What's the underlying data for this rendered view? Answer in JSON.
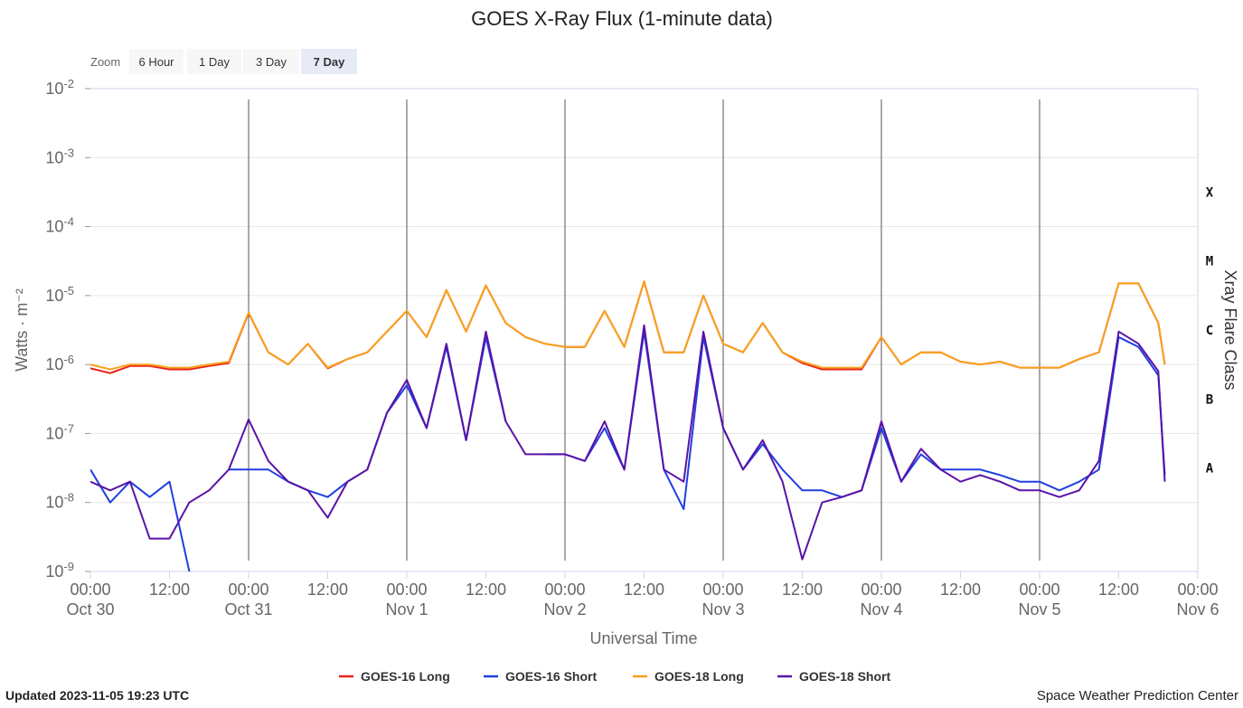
{
  "chart_data": {
    "type": "line",
    "title": "GOES X-Ray Flux (1-minute data)",
    "zoom": {
      "label": "Zoom",
      "buttons": [
        "6 Hour",
        "1 Day",
        "3 Day",
        "7 Day"
      ],
      "selected": 3
    },
    "x_label": "Universal Time",
    "y_label": "Watts · m⁻²",
    "y2_label": "Xray Flare Class",
    "log_y": true,
    "grid": true,
    "ylim": [
      1e-09,
      0.01
    ],
    "yticks": [
      {
        "value": 0.01,
        "label": [
          "10",
          "-2"
        ]
      },
      {
        "value": 0.001,
        "label": [
          "10",
          "-3"
        ]
      },
      {
        "value": 0.0001,
        "label": [
          "10",
          "-4"
        ]
      },
      {
        "value": 1e-05,
        "label": [
          "10",
          "-5"
        ]
      },
      {
        "value": 1e-06,
        "label": [
          "10",
          "-6"
        ]
      },
      {
        "value": 1e-07,
        "label": [
          "10",
          "-7"
        ]
      },
      {
        "value": 1e-08,
        "label": [
          "10",
          "-8"
        ]
      },
      {
        "value": 1e-09,
        "label": [
          "10",
          "-9"
        ]
      }
    ],
    "flare_classes": [
      {
        "value": 0.0001,
        "label": "X"
      },
      {
        "value": 1e-05,
        "label": "M"
      },
      {
        "value": 1e-06,
        "label": "C"
      },
      {
        "value": 1e-07,
        "label": "B"
      },
      {
        "value": 1e-08,
        "label": "A"
      }
    ],
    "xlim": [
      "Oct 30 00:00",
      "Nov 6 00:00"
    ],
    "xticks": [
      {
        "value": "Oct 30 00:00",
        "label": [
          "00:00",
          "Oct 30"
        ]
      },
      {
        "value": "Oct 30 12:00",
        "label": [
          "12:00"
        ]
      },
      {
        "value": "Oct 31 00:00",
        "label": [
          "00:00",
          "Oct 31"
        ]
      },
      {
        "value": "Oct 31 12:00",
        "label": [
          "12:00"
        ]
      },
      {
        "value": "Nov 1 00:00",
        "label": [
          "00:00",
          "Nov 1"
        ]
      },
      {
        "value": "Nov 1 12:00",
        "label": [
          "12:00"
        ]
      },
      {
        "value": "Nov 2 00:00",
        "label": [
          "00:00",
          "Nov 2"
        ]
      },
      {
        "value": "Nov 2 12:00",
        "label": [
          "12:00"
        ]
      },
      {
        "value": "Nov 3 00:00",
        "label": [
          "00:00",
          "Nov 3"
        ]
      },
      {
        "value": "Nov 3 12:00",
        "label": [
          "12:00"
        ]
      },
      {
        "value": "Nov 4 00:00",
        "label": [
          "00:00",
          "Nov 4"
        ]
      },
      {
        "value": "Nov 4 12:00",
        "label": [
          "12:00"
        ]
      },
      {
        "value": "Nov 5 00:00",
        "label": [
          "00:00",
          "Nov 5"
        ]
      },
      {
        "value": "Nov 5 12:00",
        "label": [
          "12:00"
        ]
      },
      {
        "value": "Nov 6 00:00",
        "label": [
          "00:00",
          "Nov 6"
        ]
      }
    ],
    "x": [
      "Oct 30 00:00",
      "Oct 30 03:00",
      "Oct 30 06:00",
      "Oct 30 09:00",
      "Oct 30 12:00",
      "Oct 30 15:00",
      "Oct 30 18:00",
      "Oct 30 21:00",
      "Oct 31 00:00",
      "Oct 31 03:00",
      "Oct 31 06:00",
      "Oct 31 09:00",
      "Oct 31 12:00",
      "Oct 31 15:00",
      "Oct 31 18:00",
      "Oct 31 21:00",
      "Nov 1 00:00",
      "Nov 1 03:00",
      "Nov 1 06:00",
      "Nov 1 09:00",
      "Nov 1 12:00",
      "Nov 1 15:00",
      "Nov 1 18:00",
      "Nov 1 21:00",
      "Nov 2 00:00",
      "Nov 2 03:00",
      "Nov 2 06:00",
      "Nov 2 09:00",
      "Nov 2 12:00",
      "Nov 2 15:00",
      "Nov 2 18:00",
      "Nov 2 21:00",
      "Nov 3 00:00",
      "Nov 3 03:00",
      "Nov 3 06:00",
      "Nov 3 09:00",
      "Nov 3 12:00",
      "Nov 3 15:00",
      "Nov 3 18:00",
      "Nov 3 21:00",
      "Nov 4 00:00",
      "Nov 4 03:00",
      "Nov 4 06:00",
      "Nov 4 09:00",
      "Nov 4 12:00",
      "Nov 4 15:00",
      "Nov 4 18:00",
      "Nov 4 21:00",
      "Nov 5 00:00",
      "Nov 5 03:00",
      "Nov 5 06:00",
      "Nov 5 09:00",
      "Nov 5 12:00",
      "Nov 5 15:00",
      "Nov 5 18:00",
      "Nov 5 19:00"
    ],
    "series": [
      {
        "name": "GOES-16 Long",
        "color": "#e8221b",
        "values": [
          8.8e-07,
          7.5e-07,
          9.5e-07,
          9.5e-07,
          8.5e-07,
          8.5e-07,
          9.5e-07,
          1.05e-06,
          5.6e-06,
          1.5e-06,
          1e-06,
          2e-06,
          8.8e-07,
          1.2e-06,
          1.5e-06,
          3e-06,
          6e-06,
          2.5e-06,
          1.2e-05,
          3e-06,
          1.4e-05,
          4e-06,
          2.5e-06,
          2e-06,
          1.8e-06,
          1.8e-06,
          6e-06,
          1.8e-06,
          1.6e-05,
          1.5e-06,
          1.5e-06,
          1e-05,
          2e-06,
          1.5e-06,
          4e-06,
          1.5e-06,
          1.05e-06,
          8.5e-07,
          8.5e-07,
          8.5e-07,
          2.5e-06,
          1e-06,
          1.5e-06,
          1.5e-06,
          1.1e-06,
          1e-06,
          1.1e-06,
          9e-07,
          9e-07,
          9e-07,
          1.2e-06,
          1.5e-06,
          1.5e-05,
          1.5e-05,
          4e-06,
          1e-06
        ]
      },
      {
        "name": "GOES-16 Short",
        "color": "#1f3fe0",
        "values": [
          3e-08,
          1e-08,
          2e-08,
          1.2e-08,
          2e-08,
          1e-09,
          null,
          3e-08,
          3e-08,
          3e-08,
          2e-08,
          1.5e-08,
          1.2e-08,
          2e-08,
          3e-08,
          2e-07,
          5e-07,
          1.2e-07,
          1.8e-06,
          8e-08,
          2.5e-06,
          1.5e-07,
          null,
          5e-08,
          5e-08,
          4e-08,
          1.2e-07,
          3e-08,
          3e-06,
          3e-08,
          8e-09,
          2.5e-06,
          1.2e-07,
          3e-08,
          7e-08,
          3e-08,
          1.5e-08,
          1.5e-08,
          1.2e-08,
          1.5e-08,
          1.2e-07,
          2e-08,
          5e-08,
          3e-08,
          3e-08,
          3e-08,
          2.5e-08,
          2e-08,
          2e-08,
          1.5e-08,
          2e-08,
          3e-08,
          2.5e-06,
          1.8e-06,
          7e-07,
          2.5e-08
        ]
      },
      {
        "name": "GOES-18 Long",
        "color": "#f9a21d",
        "values": [
          1e-06,
          8.5e-07,
          1e-06,
          1e-06,
          9e-07,
          9e-07,
          1e-06,
          1.1e-06,
          5.7e-06,
          1.5e-06,
          1e-06,
          2e-06,
          9e-07,
          1.2e-06,
          1.5e-06,
          3e-06,
          6e-06,
          2.5e-06,
          1.2e-05,
          3e-06,
          1.4e-05,
          4e-06,
          2.5e-06,
          2e-06,
          1.8e-06,
          1.8e-06,
          6e-06,
          1.8e-06,
          1.6e-05,
          1.5e-06,
          1.5e-06,
          1e-05,
          2e-06,
          1.5e-06,
          4e-06,
          1.5e-06,
          1.1e-06,
          9e-07,
          9e-07,
          9e-07,
          2.5e-06,
          1e-06,
          1.5e-06,
          1.5e-06,
          1.1e-06,
          1e-06,
          1.1e-06,
          9e-07,
          9e-07,
          9e-07,
          1.2e-06,
          1.5e-06,
          1.5e-05,
          1.5e-05,
          4e-06,
          1e-06
        ]
      },
      {
        "name": "GOES-18 Short",
        "color": "#5a12a8",
        "values": [
          2e-08,
          1.5e-08,
          2e-08,
          3e-09,
          3e-09,
          1e-08,
          1.5e-08,
          3e-08,
          1.6e-07,
          4e-08,
          2e-08,
          1.5e-08,
          6e-09,
          2e-08,
          3e-08,
          2e-07,
          6e-07,
          1.2e-07,
          2e-06,
          8e-08,
          3e-06,
          1.5e-07,
          5e-08,
          5e-08,
          5e-08,
          4e-08,
          1.5e-07,
          3e-08,
          3.7e-06,
          3e-08,
          2e-08,
          3e-06,
          1.2e-07,
          3e-08,
          8e-08,
          2e-08,
          1.5e-09,
          1e-08,
          1.2e-08,
          1.5e-08,
          1.5e-07,
          2e-08,
          6e-08,
          3e-08,
          2e-08,
          2.5e-08,
          2e-08,
          1.5e-08,
          1.5e-08,
          1.2e-08,
          1.5e-08,
          4e-08,
          3e-06,
          2e-06,
          8e-07,
          2e-08
        ]
      }
    ],
    "updated": "Updated 2023-11-05 19:23 UTC",
    "credit": "Space Weather Prediction Center"
  }
}
